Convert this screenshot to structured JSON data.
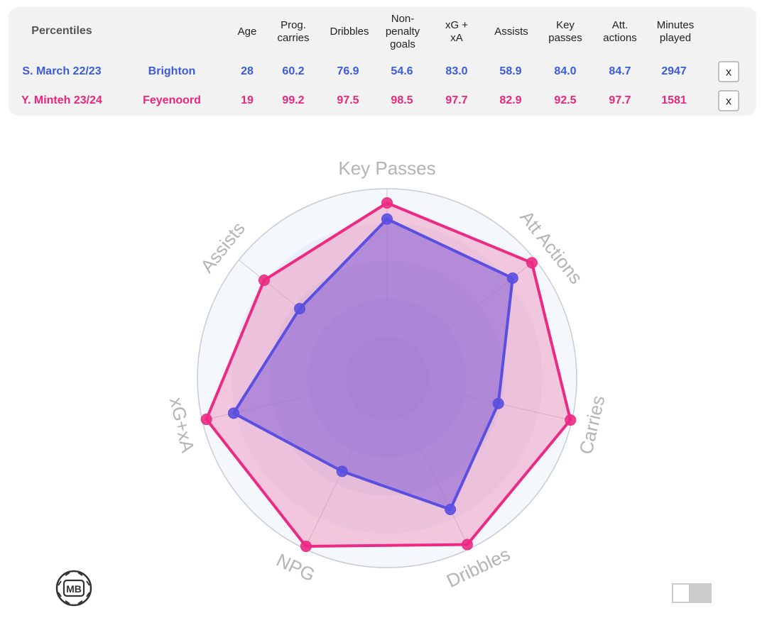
{
  "table": {
    "title": "Percentiles",
    "headers": {
      "age": "Age",
      "prog_carries": [
        "Prog.",
        "carries"
      ],
      "dribbles": "Dribbles",
      "np_goals": [
        "Non-",
        "penalty",
        "goals"
      ],
      "xg_xa": [
        "xG +",
        "xA"
      ],
      "assists": "Assists",
      "key_passes": [
        "Key",
        "passes"
      ],
      "att_actions": [
        "Att.",
        "actions"
      ],
      "minutes": [
        "Minutes",
        "played"
      ]
    },
    "rows": [
      {
        "player": "S. March 22/23",
        "team": "Brighton",
        "age": "28",
        "prog_carries": "60.2",
        "dribbles": "76.9",
        "np_goals": "54.6",
        "xg_xa": "83.0",
        "assists": "58.9",
        "key_passes": "84.0",
        "att_actions": "84.7",
        "minutes": "2947",
        "remove_label": "x",
        "color": "#3b5bdb"
      },
      {
        "player": "Y. Minteh 23/24",
        "team": "Feyenoord",
        "age": "19",
        "prog_carries": "99.2",
        "dribbles": "97.5",
        "np_goals": "98.5",
        "xg_xa": "97.7",
        "assists": "82.9",
        "key_passes": "92.5",
        "att_actions": "97.7",
        "minutes": "1581",
        "remove_label": "x",
        "color": "#e8267c"
      }
    ]
  },
  "chart_data": {
    "type": "radar",
    "axes": [
      "Key Passes",
      "Att Actions",
      "Carries",
      "Dribbles",
      "NPG",
      "xG+xA",
      "Assists"
    ],
    "range": [
      0,
      100
    ],
    "series": [
      {
        "name": "S. March 22/23",
        "color": "#5a4fe0",
        "fill": "#7a55d6",
        "values": [
          84.0,
          84.7,
          60.2,
          76.9,
          54.6,
          83.0,
          58.9
        ]
      },
      {
        "name": "Y. Minteh 23/24",
        "color": "#ec2a84",
        "fill": "#f08ab8",
        "values": [
          92.5,
          97.7,
          99.2,
          97.5,
          98.5,
          97.7,
          82.9
        ]
      }
    ]
  },
  "logo_text": "MB",
  "colors": {
    "player_a": "#3b5bdb",
    "player_b": "#e8267c",
    "panel": "#f2f2f2"
  }
}
